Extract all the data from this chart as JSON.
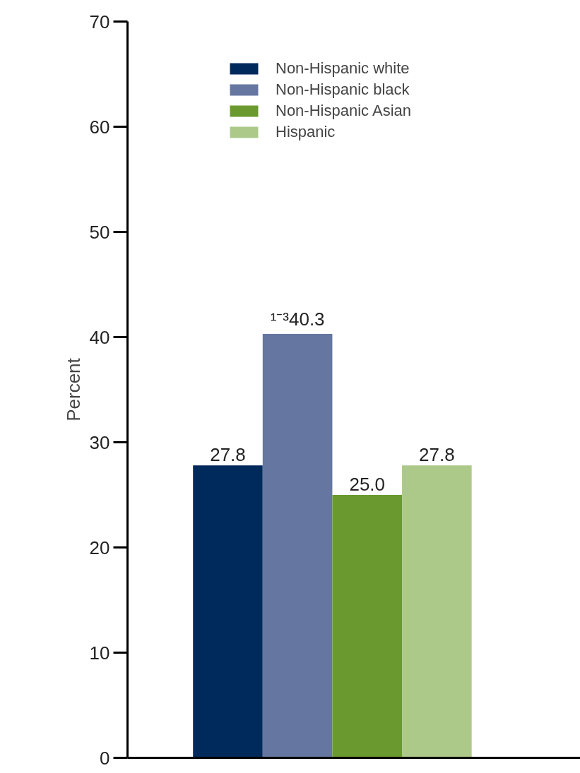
{
  "chart_data": {
    "type": "bar",
    "ylabel": "Percent",
    "categories": [
      null
    ],
    "series": [
      {
        "name": "Non-Hispanic white",
        "color": "#002a5c",
        "values": [
          27.8
        ],
        "value_labels": [
          "27.8"
        ]
      },
      {
        "name": "Non-Hispanic black",
        "color": "#6577a0",
        "values": [
          40.3
        ],
        "value_labels": [
          "¹⁻³40.3"
        ]
      },
      {
        "name": "Non-Hispanic Asian",
        "color": "#6a9a2f",
        "values": [
          25.0
        ],
        "value_labels": [
          "25.0"
        ]
      },
      {
        "name": "Hispanic",
        "color": "#adc98a",
        "values": [
          27.8
        ],
        "value_labels": [
          "27.8"
        ]
      }
    ],
    "ylim": [
      0,
      70
    ],
    "yticks": [
      0,
      10,
      20,
      30,
      40,
      50,
      60,
      70
    ],
    "grid": false,
    "legend": "top"
  }
}
